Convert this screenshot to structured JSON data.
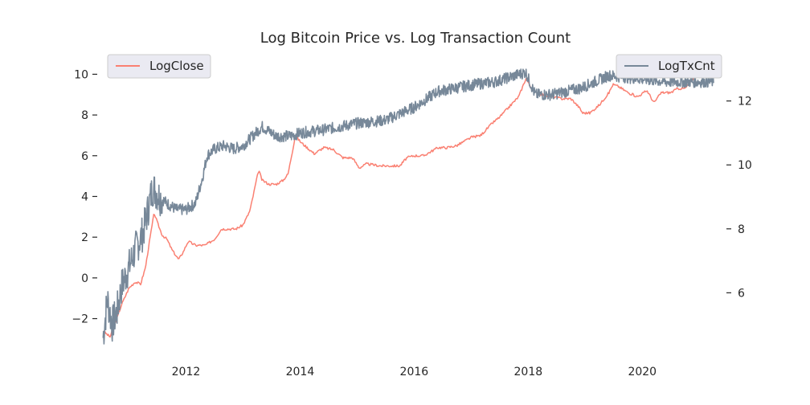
{
  "chart_data": {
    "type": "line",
    "title": "Log Bitcoin Price vs. Log Transaction Count",
    "xlabel": "",
    "x_ticks": [
      "2012",
      "2014",
      "2016",
      "2018",
      "2020"
    ],
    "x_range": [
      "2010-07",
      "2021-04"
    ],
    "y_left": {
      "ylabel": "",
      "ylim": [
        -3.4,
        11.2
      ],
      "ticks": [
        -2,
        0,
        2,
        4,
        6,
        8,
        10
      ]
    },
    "y_right": {
      "ylabel": "",
      "ylim": [
        4.3,
        13.6
      ],
      "ticks": [
        6,
        8,
        10,
        12
      ]
    },
    "grid": false,
    "series": [
      {
        "name": "LogClose",
        "axis": "left",
        "color": "#fa8072",
        "legend_position": "top-left",
        "points": [
          [
            "2010-07-18",
            -2.6
          ],
          [
            "2010-09-01",
            -2.9
          ],
          [
            "2010-10-15",
            -2.0
          ],
          [
            "2010-11-15",
            -1.3
          ],
          [
            "2011-01-01",
            -0.5
          ],
          [
            "2011-02-10",
            -0.2
          ],
          [
            "2011-03-15",
            -0.3
          ],
          [
            "2011-04-15",
            0.5
          ],
          [
            "2011-05-15",
            2.0
          ],
          [
            "2011-06-10",
            3.2
          ],
          [
            "2011-07-01",
            2.7
          ],
          [
            "2011-08-01",
            2.1
          ],
          [
            "2011-09-01",
            1.9
          ],
          [
            "2011-10-01",
            1.4
          ],
          [
            "2011-11-15",
            0.9
          ],
          [
            "2011-12-15",
            1.3
          ],
          [
            "2012-01-15",
            1.8
          ],
          [
            "2012-03-01",
            1.6
          ],
          [
            "2012-05-01",
            1.6
          ],
          [
            "2012-07-01",
            1.9
          ],
          [
            "2012-08-15",
            2.4
          ],
          [
            "2012-10-01",
            2.4
          ],
          [
            "2012-11-15",
            2.4
          ],
          [
            "2013-01-01",
            2.6
          ],
          [
            "2013-02-15",
            3.3
          ],
          [
            "2013-03-15",
            4.4
          ],
          [
            "2013-04-10",
            5.3
          ],
          [
            "2013-05-01",
            4.8
          ],
          [
            "2013-06-15",
            4.6
          ],
          [
            "2013-08-01",
            4.6
          ],
          [
            "2013-09-15",
            4.8
          ],
          [
            "2013-10-15",
            5.1
          ],
          [
            "2013-11-15",
            6.3
          ],
          [
            "2013-12-01",
            7.0
          ],
          [
            "2014-01-01",
            6.7
          ],
          [
            "2014-02-15",
            6.4
          ],
          [
            "2014-04-01",
            6.1
          ],
          [
            "2014-06-01",
            6.4
          ],
          [
            "2014-08-01",
            6.3
          ],
          [
            "2014-10-01",
            5.9
          ],
          [
            "2014-12-01",
            5.9
          ],
          [
            "2015-01-15",
            5.4
          ],
          [
            "2015-03-01",
            5.6
          ],
          [
            "2015-06-01",
            5.5
          ],
          [
            "2015-08-01",
            5.5
          ],
          [
            "2015-10-01",
            5.5
          ],
          [
            "2015-11-15",
            5.9
          ],
          [
            "2016-01-01",
            6.0
          ],
          [
            "2016-03-01",
            6.0
          ],
          [
            "2016-06-01",
            6.4
          ],
          [
            "2016-08-01",
            6.4
          ],
          [
            "2016-10-01",
            6.5
          ],
          [
            "2017-01-01",
            6.9
          ],
          [
            "2017-03-01",
            7.0
          ],
          [
            "2017-05-15",
            7.6
          ],
          [
            "2017-07-01",
            7.9
          ],
          [
            "2017-09-01",
            8.4
          ],
          [
            "2017-11-01",
            8.9
          ],
          [
            "2017-12-17",
            9.8
          ],
          [
            "2018-01-15",
            9.4
          ],
          [
            "2018-02-15",
            9.1
          ],
          [
            "2018-04-01",
            9.0
          ],
          [
            "2018-06-01",
            8.9
          ],
          [
            "2018-08-01",
            8.8
          ],
          [
            "2018-10-01",
            8.8
          ],
          [
            "2018-11-20",
            8.4
          ],
          [
            "2018-12-15",
            8.1
          ],
          [
            "2019-02-01",
            8.1
          ],
          [
            "2019-04-01",
            8.5
          ],
          [
            "2019-06-01",
            9.1
          ],
          [
            "2019-06-26",
            9.5
          ],
          [
            "2019-08-01",
            9.4
          ],
          [
            "2019-10-01",
            9.1
          ],
          [
            "2019-12-01",
            8.9
          ],
          [
            "2020-02-01",
            9.2
          ],
          [
            "2020-03-15",
            8.6
          ],
          [
            "2020-05-01",
            9.1
          ],
          [
            "2020-07-01",
            9.1
          ],
          [
            "2020-08-15",
            9.3
          ],
          [
            "2020-10-01",
            9.3
          ],
          [
            "2020-11-15",
            9.7
          ],
          [
            "2020-12-31",
            10.2
          ],
          [
            "2021-02-01",
            10.5
          ],
          [
            "2021-04-01",
            10.9
          ]
        ]
      },
      {
        "name": "LogTxCnt",
        "axis": "right",
        "color": "#778899",
        "legend_position": "top-right",
        "noise_amplitude": 0.18,
        "points": [
          [
            "2010-07-18",
            4.6
          ],
          [
            "2010-08-15",
            5.8
          ],
          [
            "2010-09-15",
            5.0
          ],
          [
            "2010-10-15",
            5.4
          ],
          [
            "2010-11-15",
            6.2
          ],
          [
            "2011-01-01",
            6.8
          ],
          [
            "2011-02-15",
            7.4
          ],
          [
            "2011-04-01",
            7.9
          ],
          [
            "2011-06-01",
            9.3
          ],
          [
            "2011-07-15",
            9.0
          ],
          [
            "2011-09-01",
            8.8
          ],
          [
            "2011-11-01",
            8.6
          ],
          [
            "2012-01-01",
            8.6
          ],
          [
            "2012-03-01",
            8.8
          ],
          [
            "2012-04-15",
            9.6
          ],
          [
            "2012-05-15",
            10.3
          ],
          [
            "2012-07-01",
            10.5
          ],
          [
            "2012-09-01",
            10.6
          ],
          [
            "2012-11-01",
            10.5
          ],
          [
            "2013-01-01",
            10.6
          ],
          [
            "2013-03-01",
            10.9
          ],
          [
            "2013-05-01",
            11.2
          ],
          [
            "2013-08-01",
            10.9
          ],
          [
            "2013-11-01",
            10.9
          ],
          [
            "2014-01-01",
            11.0
          ],
          [
            "2014-06-01",
            11.1
          ],
          [
            "2015-01-01",
            11.3
          ],
          [
            "2015-07-01",
            11.4
          ],
          [
            "2016-01-01",
            11.8
          ],
          [
            "2016-06-01",
            12.3
          ],
          [
            "2017-01-01",
            12.5
          ],
          [
            "2017-06-01",
            12.6
          ],
          [
            "2017-12-15",
            12.9
          ],
          [
            "2018-02-15",
            12.2
          ],
          [
            "2018-06-01",
            12.2
          ],
          [
            "2018-12-01",
            12.4
          ],
          [
            "2019-06-01",
            12.8
          ],
          [
            "2019-12-01",
            12.7
          ],
          [
            "2020-06-01",
            12.6
          ],
          [
            "2021-01-01",
            12.6
          ],
          [
            "2021-04-01",
            12.6
          ]
        ]
      }
    ]
  }
}
